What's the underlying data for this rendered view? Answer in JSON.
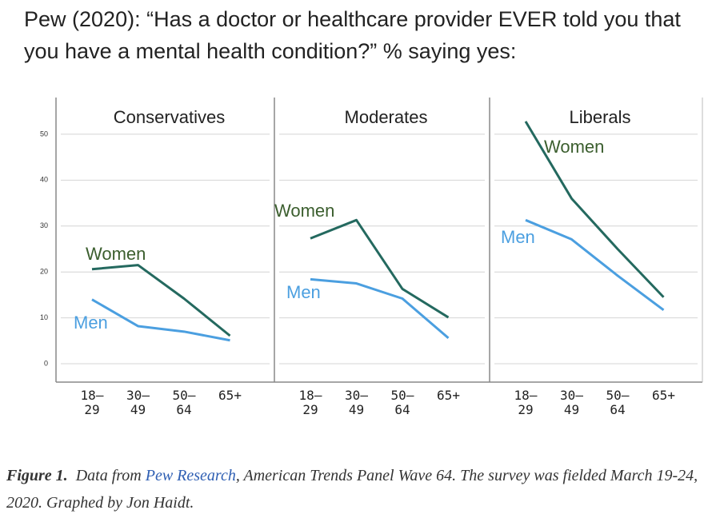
{
  "title": "Pew (2020): “Has a doctor or healthcare provider EVER told you that you have a mental health condition?” % saying yes:",
  "caption": {
    "label": "Figure 1.",
    "text_before": "Data from ",
    "link": "Pew Research",
    "text_after": ", American Trends Panel Wave 64. The survey was fielded March 19-24, 2020. Graphed by Jon Haidt."
  },
  "chart_data": [
    {
      "type": "line",
      "title": "Conservatives",
      "categories": [
        "18–\n29",
        "30–\n49",
        "50–\n64",
        "65+"
      ],
      "series": [
        {
          "name": "Women",
          "color": "#24695f",
          "values": [
            20.6,
            21.5,
            14.2,
            6.1
          ]
        },
        {
          "name": "Men",
          "color": "#4b9fe0",
          "values": [
            14.0,
            8.2,
            7.0,
            5.1
          ]
        }
      ],
      "ylim": [
        -4,
        58
      ],
      "yticks": [
        0,
        10,
        20,
        30,
        40,
        50
      ],
      "grid": true,
      "show_yticklabels": true
    },
    {
      "type": "line",
      "title": "Moderates",
      "categories": [
        "18–\n29",
        "30–\n49",
        "50–\n64",
        "65+"
      ],
      "series": [
        {
          "name": "Women",
          "color": "#24695f",
          "values": [
            27.3,
            31.3,
            16.3,
            10.1
          ]
        },
        {
          "name": "Men",
          "color": "#4b9fe0",
          "values": [
            18.4,
            17.5,
            14.2,
            5.6
          ]
        }
      ],
      "ylim": [
        -4,
        58
      ],
      "yticks": [
        0,
        10,
        20,
        30,
        40,
        50
      ],
      "grid": true,
      "show_yticklabels": false
    },
    {
      "type": "line",
      "title": "Liberals",
      "categories": [
        "18–\n29",
        "30–\n49",
        "50–\n64",
        "65+"
      ],
      "series": [
        {
          "name": "Women",
          "color": "#24695f",
          "values": [
            52.8,
            36.0,
            25.0,
            14.5
          ]
        },
        {
          "name": "Men",
          "color": "#4b9fe0",
          "values": [
            31.3,
            27.1,
            19.2,
            11.7
          ]
        }
      ],
      "ylim": [
        -4,
        58
      ],
      "yticks": [
        0,
        10,
        20,
        30,
        40,
        50
      ],
      "grid": true,
      "show_yticklabels": false
    }
  ]
}
